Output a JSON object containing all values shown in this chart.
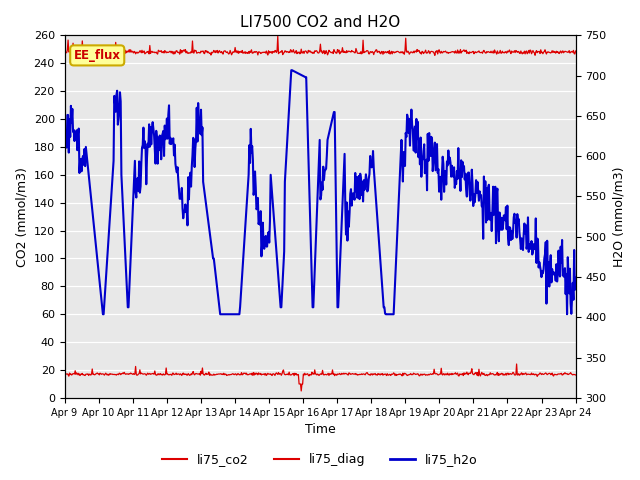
{
  "title": "LI7500 CO2 and H2O",
  "xlabel": "Time",
  "ylabel_left": "CO2 (mmol/m3)",
  "ylabel_right": "H2O (mmol/m3)",
  "ylim_left": [
    0,
    260
  ],
  "ylim_right": [
    300,
    750
  ],
  "x_tick_labels": [
    "Apr 9",
    "Apr 10",
    "Apr 11",
    "Apr 12",
    "Apr 13",
    "Apr 14",
    "Apr 15",
    "Apr 16",
    "Apr 17",
    "Apr 18",
    "Apr 19",
    "Apr 20",
    "Apr 21",
    "Apr 22",
    "Apr 23",
    "Apr 24"
  ],
  "co2_color": "#dd0000",
  "diag_color": "#dd0000",
  "h2o_color": "#0000cc",
  "bg_color": "#e8e8e8",
  "annotation_text": "EE_flux",
  "annotation_bg": "#ffff99",
  "annotation_border": "#ccaa00",
  "left_yticks": [
    0,
    20,
    40,
    60,
    80,
    100,
    120,
    140,
    160,
    180,
    200,
    220,
    240,
    260
  ],
  "right_yticks": [
    300,
    350,
    400,
    450,
    500,
    550,
    600,
    650,
    700,
    750
  ]
}
